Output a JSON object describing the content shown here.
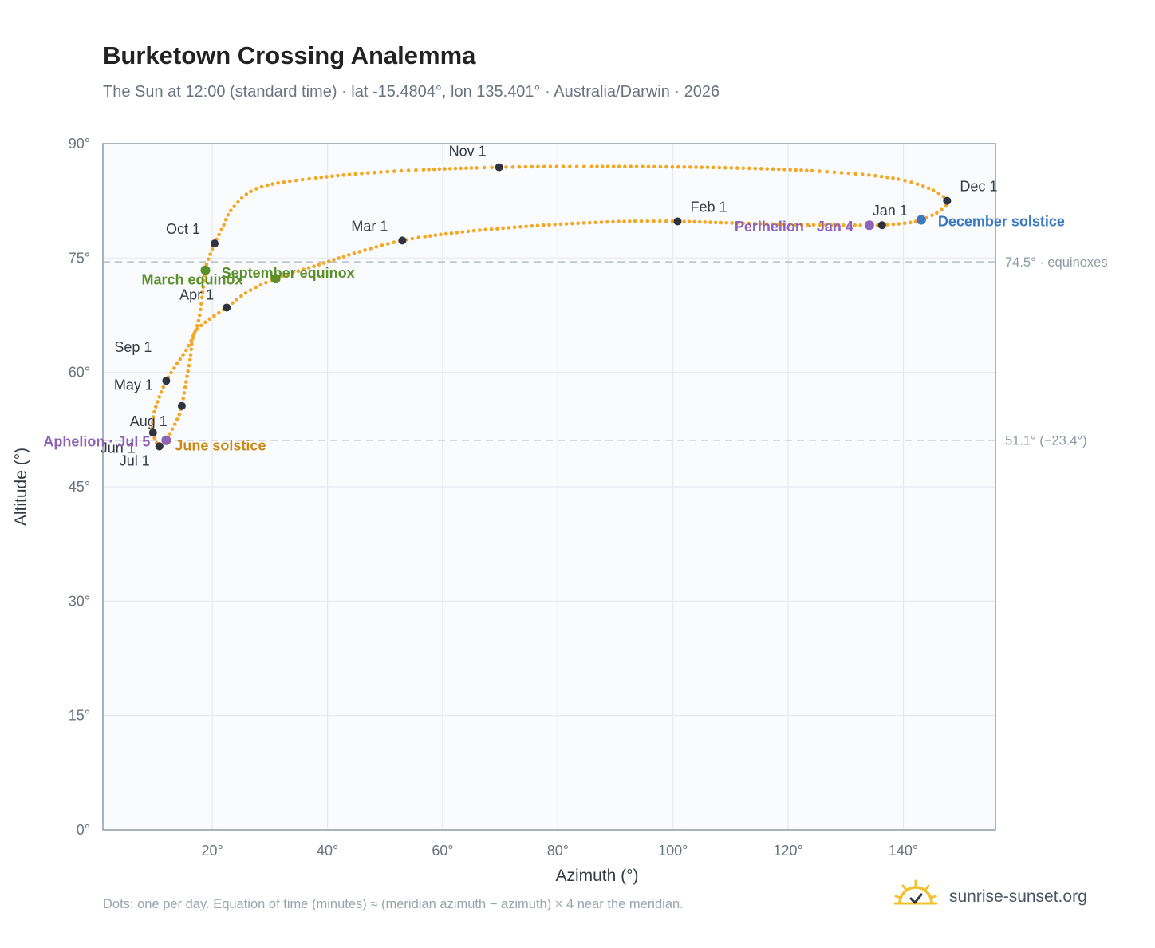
{
  "header": {
    "title": "Burketown Crossing Analemma",
    "subtitle": "The Sun at 12:00 (standard time) · lat -15.4804°, lon 135.401° · Australia/Darwin · 2026"
  },
  "footer": {
    "note": "Dots: one per day. Equation of time (minutes) ≈ (meridian azimuth − azimuth) × 4 near the meridian.",
    "brand": "sunrise-sunset.org",
    "brand_icon": "sun-logo-icon"
  },
  "colors": {
    "curve": "#f5a623",
    "month_marker": "#2d3440",
    "equinox": "#5a8f29",
    "solstice_june": "#c98a1a",
    "solstice_december": "#3a78c2",
    "apsis": "#8e63b8",
    "reference_line": "#b6bec8",
    "plot_bg": "#f9fbfd",
    "grid": "#e6eaee",
    "frame": "#8f99a6"
  },
  "chart_data": {
    "type": "scatter",
    "xlabel": "Azimuth (°)",
    "ylabel": "Altitude (°)",
    "xlim": [
      1,
      156
    ],
    "ylim": [
      0,
      90
    ],
    "xticks": [
      20,
      40,
      60,
      80,
      100,
      120,
      140
    ],
    "yticks": [
      0,
      15,
      30,
      45,
      60,
      75,
      90
    ],
    "xtick_labels": [
      "20°",
      "40°",
      "60°",
      "80°",
      "100°",
      "120°",
      "140°"
    ],
    "ytick_labels": [
      "0°",
      "15°",
      "30°",
      "45°",
      "60°",
      "75°",
      "90°"
    ],
    "grid": true,
    "reference_lines": [
      {
        "y": 74.5,
        "label": "74.5° · equinoxes"
      },
      {
        "y": 51.1,
        "label": "51.1° (−23.4°)"
      }
    ],
    "month_markers": [
      {
        "label": "Jan 1",
        "az": 136.3,
        "alt": 79.3
      },
      {
        "label": "Feb 1",
        "az": 100.8,
        "alt": 79.8
      },
      {
        "label": "Mar 1",
        "az": 53.0,
        "alt": 77.3
      },
      {
        "label": "Apr 1",
        "az": 22.5,
        "alt": 68.5
      },
      {
        "label": "May 1",
        "az": 14.7,
        "alt": 55.6
      },
      {
        "label": "Jun 1",
        "az": 10.8,
        "alt": 50.3
      },
      {
        "label": "Jul 1",
        "az": 10.8,
        "alt": 50.3
      },
      {
        "label": "Aug 1",
        "az": 9.7,
        "alt": 52.1
      },
      {
        "label": "Sep 1",
        "az": 12.0,
        "alt": 58.9
      },
      {
        "label": "Oct 1",
        "az": 20.4,
        "alt": 76.9
      },
      {
        "label": "Nov 1",
        "az": 69.8,
        "alt": 86.9
      },
      {
        "label": "Dec 1",
        "az": 147.6,
        "alt": 82.5
      }
    ],
    "events": [
      {
        "label": "March equinox",
        "az": 18.8,
        "alt": 73.4,
        "kind": "equinox"
      },
      {
        "label": "September equinox",
        "az": 31.0,
        "alt": 72.3,
        "kind": "equinox"
      },
      {
        "label": "June solstice",
        "az": 12.0,
        "alt": 51.1,
        "kind": "solstice_june"
      },
      {
        "label": "December solstice",
        "az": 143.1,
        "alt": 80.0,
        "kind": "solstice_december"
      },
      {
        "label": "Aphelion · Jul 5",
        "az": 12.0,
        "alt": 51.1,
        "kind": "apsis"
      },
      {
        "label": "Perihelion · Jan 4",
        "az": 134.1,
        "alt": 79.3,
        "kind": "apsis"
      }
    ],
    "curve_anchor_points": [
      [
        136.3,
        79.3
      ],
      [
        143.1,
        80.0
      ],
      [
        147.6,
        82.5
      ],
      [
        140.0,
        85.2
      ],
      [
        125.0,
        86.4
      ],
      [
        105.0,
        86.9
      ],
      [
        85.0,
        87.0
      ],
      [
        69.8,
        86.9
      ],
      [
        52.0,
        86.4
      ],
      [
        38.0,
        85.5
      ],
      [
        28.0,
        84.2
      ],
      [
        23.5,
        81.5
      ],
      [
        21.8,
        79.0
      ],
      [
        20.4,
        76.9
      ],
      [
        19.4,
        75.0
      ],
      [
        18.8,
        73.4
      ],
      [
        17.8,
        67.5
      ],
      [
        16.8,
        65.0
      ],
      [
        15.6,
        63.1
      ],
      [
        13.6,
        60.8
      ],
      [
        12.0,
        58.9
      ],
      [
        10.5,
        56.2
      ],
      [
        9.7,
        54.0
      ],
      [
        9.7,
        52.1
      ],
      [
        10.3,
        50.8
      ],
      [
        10.8,
        50.3
      ],
      [
        12.0,
        51.1
      ],
      [
        13.0,
        52.5
      ],
      [
        14.0,
        54.0
      ],
      [
        14.7,
        55.6
      ],
      [
        15.5,
        59.0
      ],
      [
        16.2,
        62.0
      ],
      [
        16.8,
        65.0
      ],
      [
        19.0,
        66.7
      ],
      [
        22.5,
        68.5
      ],
      [
        26.0,
        70.5
      ],
      [
        31.0,
        72.3
      ],
      [
        38.0,
        74.0
      ],
      [
        45.0,
        75.7
      ],
      [
        53.0,
        77.3
      ],
      [
        62.0,
        78.3
      ],
      [
        72.0,
        79.0
      ],
      [
        82.0,
        79.5
      ],
      [
        92.0,
        79.8
      ],
      [
        100.8,
        79.8
      ],
      [
        110.0,
        79.6
      ],
      [
        120.0,
        79.4
      ],
      [
        130.0,
        79.3
      ],
      [
        136.3,
        79.3
      ]
    ]
  }
}
